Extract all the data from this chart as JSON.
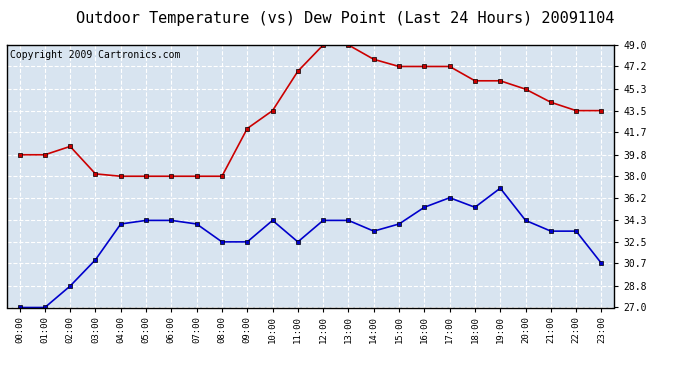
{
  "title": "Outdoor Temperature (vs) Dew Point (Last 24 Hours) 20091104",
  "copyright": "Copyright 2009 Cartronics.com",
  "x_labels": [
    "00:00",
    "01:00",
    "02:00",
    "03:00",
    "04:00",
    "05:00",
    "06:00",
    "07:00",
    "08:00",
    "09:00",
    "10:00",
    "11:00",
    "12:00",
    "13:00",
    "14:00",
    "15:00",
    "16:00",
    "17:00",
    "18:00",
    "19:00",
    "20:00",
    "21:00",
    "22:00",
    "23:00"
  ],
  "temp_red": [
    39.8,
    39.8,
    40.5,
    38.2,
    38.0,
    38.0,
    38.0,
    38.0,
    38.0,
    42.0,
    43.5,
    46.8,
    49.0,
    49.0,
    47.8,
    47.2,
    47.2,
    47.2,
    46.0,
    46.0,
    45.3,
    44.2,
    43.5,
    43.5
  ],
  "temp_blue": [
    27.0,
    27.0,
    28.8,
    31.0,
    34.0,
    34.3,
    34.3,
    34.0,
    32.5,
    32.5,
    34.3,
    32.5,
    34.3,
    34.3,
    33.4,
    34.0,
    35.4,
    36.2,
    35.4,
    37.0,
    34.3,
    33.4,
    33.4,
    30.7
  ],
  "y_min": 27.0,
  "y_max": 49.0,
  "y_ticks": [
    27.0,
    28.8,
    30.7,
    32.5,
    34.3,
    36.2,
    38.0,
    39.8,
    41.7,
    43.5,
    45.3,
    47.2,
    49.0
  ],
  "bg_color": "#ffffff",
  "plot_bg_color": "#d8e4f0",
  "grid_color": "#ffffff",
  "red_color": "#cc0000",
  "blue_color": "#0000cc",
  "title_fontsize": 11,
  "copyright_fontsize": 7
}
